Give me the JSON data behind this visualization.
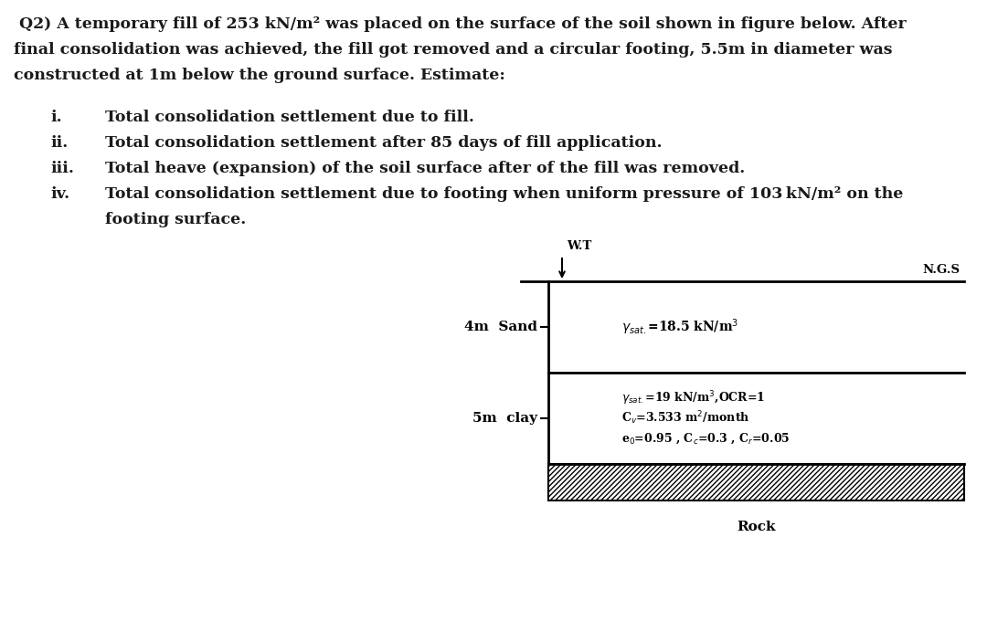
{
  "bg_color": "#ffffff",
  "text_color": "#1a1a1a",
  "title_line1": " Q2) A temporary fill of 253 kN/m² was placed on the surface of the soil shown in figure below. After",
  "title_line2": "final consolidation was achieved, the fill got removed and a circular footing, 5.5m in diameter was",
  "title_line3": "constructed at 1m below the ground surface. Estimate:",
  "item1": "Total consolidation settlement due to fill.",
  "item2": "Total consolidation settlement after 85 days of fill application.",
  "item3": "Total heave (expansion) of the soil surface after of the fill was removed.",
  "item4a": "Total consolidation settlement due to footing when uniform pressure of 103 kN/m² on the",
  "item4b": "footing surface.",
  "label_i": "i.",
  "label_ii": "ii.",
  "label_iii": "iii.",
  "label_iv": "iv.",
  "wt_label": "W.T",
  "ngs_label": "N.G.S",
  "sand_label": "4m  Sand",
  "clay_label": "5m  clay",
  "rock_label": "Rock",
  "sand_prop": "$\\gamma_{sat.}$=18.5 kN/m$^3$",
  "clay_prop1": "$\\gamma_{sat.}$=19 kN/m$^3$,OCR=1",
  "clay_prop2": "C$_v$=3.533 m$^2$/month",
  "clay_prop3": "e$_0$=0.95 , C$_c$=0.3 , C$_r$=0.05"
}
